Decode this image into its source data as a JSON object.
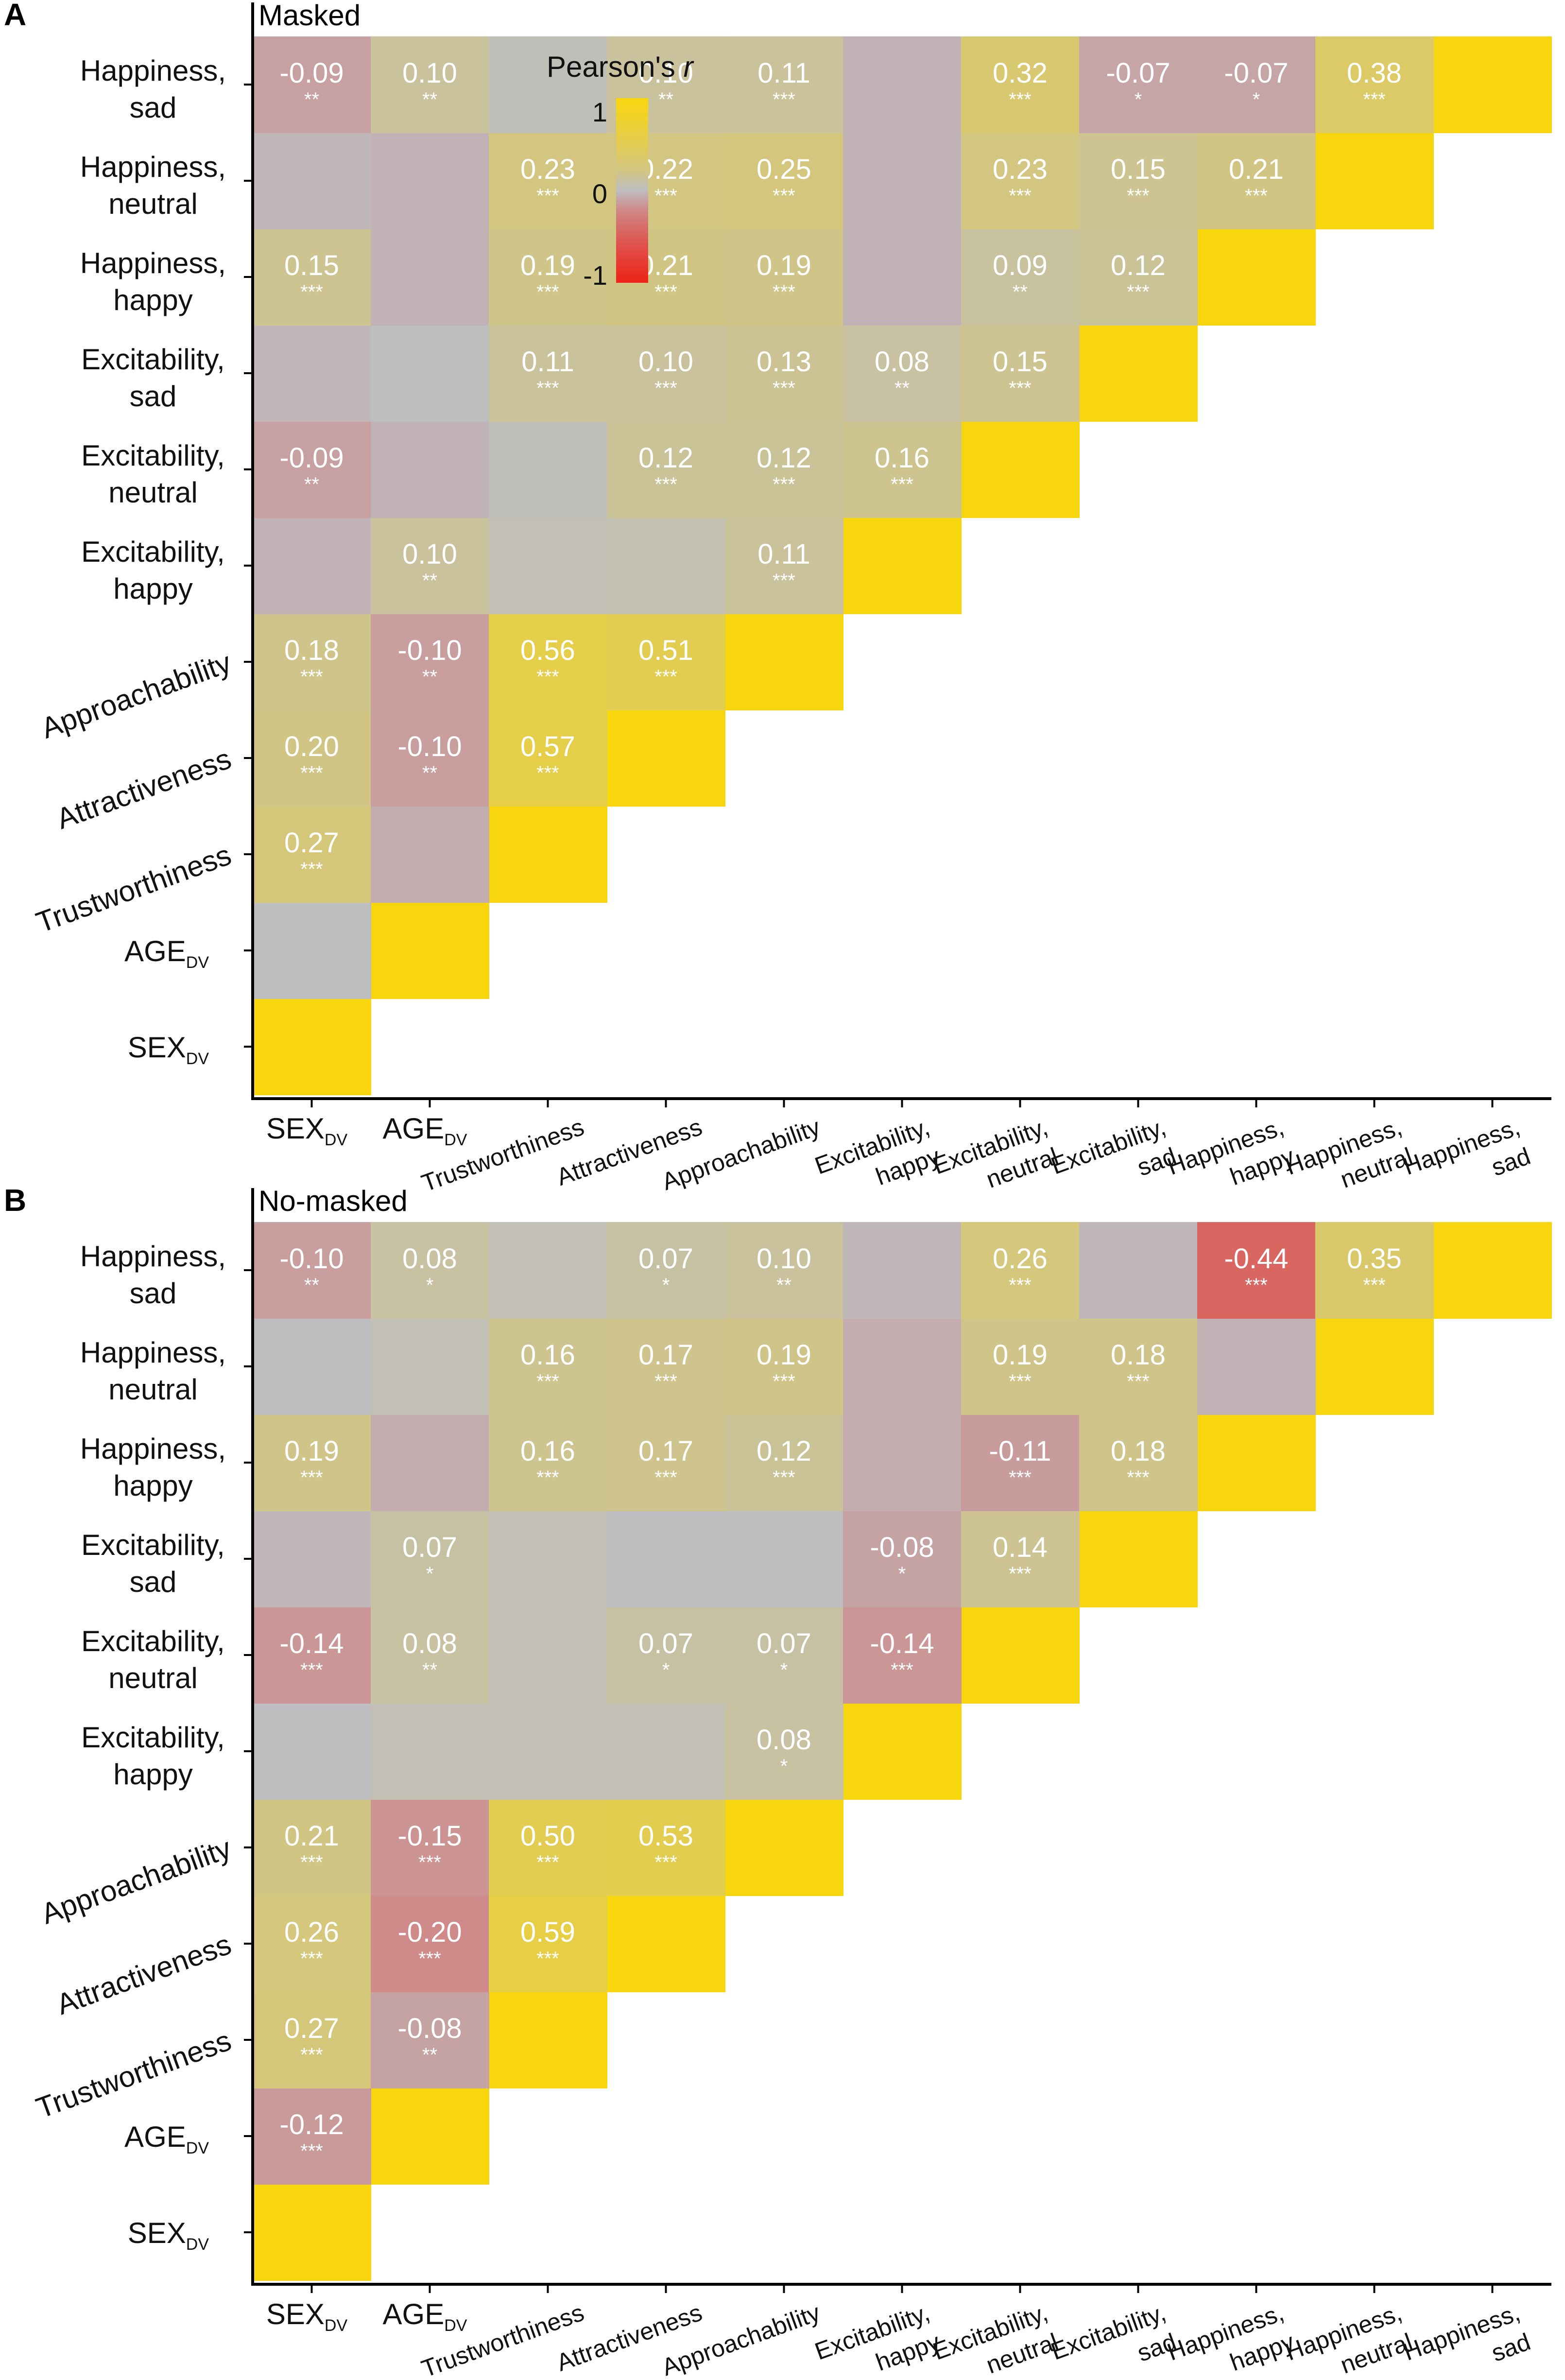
{
  "colors": {
    "pos_max": "#F8D60E",
    "zero": "#BEBDC0",
    "neg_max": "#EE2318",
    "axis": "#000000"
  },
  "chart_data": [
    {
      "type": "heatmap",
      "panel_letter": "A",
      "title": "Masked",
      "legend": {
        "title": "Pearson's",
        "title_var": "r",
        "ticks": [
          "1",
          "0",
          "-1"
        ],
        "range": [
          -1,
          1
        ]
      },
      "variables": [
        {
          "name": "SEX",
          "sub": "DV"
        },
        {
          "name": "AGE",
          "sub": "DV"
        },
        {
          "name": "Trustworthiness",
          "sub": ""
        },
        {
          "name": "Attractiveness",
          "sub": ""
        },
        {
          "name": "Approachability",
          "sub": ""
        },
        {
          "name": "Excitability, happy",
          "sub": ""
        },
        {
          "name": "Excitability, neutral",
          "sub": ""
        },
        {
          "name": "Excitability, sad",
          "sub": ""
        },
        {
          "name": "Happiness, happy",
          "sub": ""
        },
        {
          "name": "Happiness, neutral",
          "sub": ""
        },
        {
          "name": "Happiness, sad",
          "sub": ""
        }
      ],
      "cells": [
        {
          "row": 1,
          "col": 0,
          "r": 0.0,
          "label": "",
          "stars": ""
        },
        {
          "row": 2,
          "col": 0,
          "r": 0.27,
          "label": "0.27",
          "stars": "***"
        },
        {
          "row": 2,
          "col": 1,
          "r": -0.04,
          "label": "",
          "stars": ""
        },
        {
          "row": 3,
          "col": 0,
          "r": 0.2,
          "label": "0.20",
          "stars": "***"
        },
        {
          "row": 3,
          "col": 1,
          "r": -0.1,
          "label": "-0.10",
          "stars": "**"
        },
        {
          "row": 3,
          "col": 2,
          "r": 0.57,
          "label": "0.57",
          "stars": "***"
        },
        {
          "row": 4,
          "col": 0,
          "r": 0.18,
          "label": "0.18",
          "stars": "***"
        },
        {
          "row": 4,
          "col": 1,
          "r": -0.1,
          "label": "-0.10",
          "stars": "**"
        },
        {
          "row": 4,
          "col": 2,
          "r": 0.56,
          "label": "0.56",
          "stars": "***"
        },
        {
          "row": 4,
          "col": 3,
          "r": 0.51,
          "label": "0.51",
          "stars": "***"
        },
        {
          "row": 5,
          "col": 0,
          "r": -0.02,
          "label": "",
          "stars": ""
        },
        {
          "row": 5,
          "col": 1,
          "r": 0.1,
          "label": "0.10",
          "stars": "**"
        },
        {
          "row": 5,
          "col": 2,
          "r": 0.02,
          "label": "",
          "stars": ""
        },
        {
          "row": 5,
          "col": 3,
          "r": 0.03,
          "label": "",
          "stars": ""
        },
        {
          "row": 5,
          "col": 4,
          "r": 0.11,
          "label": "0.11",
          "stars": "***"
        },
        {
          "row": 6,
          "col": 0,
          "r": -0.09,
          "label": "-0.09",
          "stars": "**"
        },
        {
          "row": 6,
          "col": 1,
          "r": -0.02,
          "label": "",
          "stars": ""
        },
        {
          "row": 6,
          "col": 2,
          "r": 0.01,
          "label": "",
          "stars": ""
        },
        {
          "row": 6,
          "col": 3,
          "r": 0.12,
          "label": "0.12",
          "stars": "***"
        },
        {
          "row": 6,
          "col": 4,
          "r": 0.12,
          "label": "0.12",
          "stars": "***"
        },
        {
          "row": 6,
          "col": 5,
          "r": 0.16,
          "label": "0.16",
          "stars": "***"
        },
        {
          "row": 7,
          "col": 0,
          "r": -0.01,
          "label": "",
          "stars": ""
        },
        {
          "row": 7,
          "col": 1,
          "r": 0.0,
          "label": "",
          "stars": ""
        },
        {
          "row": 7,
          "col": 2,
          "r": 0.11,
          "label": "0.11",
          "stars": "***"
        },
        {
          "row": 7,
          "col": 3,
          "r": 0.1,
          "label": "0.10",
          "stars": "***"
        },
        {
          "row": 7,
          "col": 4,
          "r": 0.13,
          "label": "0.13",
          "stars": "***"
        },
        {
          "row": 7,
          "col": 5,
          "r": 0.08,
          "label": "0.08",
          "stars": "**"
        },
        {
          "row": 7,
          "col": 6,
          "r": 0.15,
          "label": "0.15",
          "stars": "***"
        },
        {
          "row": 8,
          "col": 0,
          "r": 0.15,
          "label": "0.15",
          "stars": "***"
        },
        {
          "row": 8,
          "col": 1,
          "r": -0.02,
          "label": "",
          "stars": ""
        },
        {
          "row": 8,
          "col": 2,
          "r": 0.19,
          "label": "0.19",
          "stars": "***"
        },
        {
          "row": 8,
          "col": 3,
          "r": 0.21,
          "label": "0.21",
          "stars": "***"
        },
        {
          "row": 8,
          "col": 4,
          "r": 0.19,
          "label": "0.19",
          "stars": "***"
        },
        {
          "row": 8,
          "col": 5,
          "r": -0.02,
          "label": "",
          "stars": ""
        },
        {
          "row": 8,
          "col": 6,
          "r": 0.09,
          "label": "0.09",
          "stars": "**"
        },
        {
          "row": 8,
          "col": 7,
          "r": 0.12,
          "label": "0.12",
          "stars": "***"
        },
        {
          "row": 9,
          "col": 0,
          "r": -0.01,
          "label": "",
          "stars": ""
        },
        {
          "row": 9,
          "col": 1,
          "r": -0.02,
          "label": "",
          "stars": ""
        },
        {
          "row": 9,
          "col": 2,
          "r": 0.23,
          "label": "0.23",
          "stars": "***"
        },
        {
          "row": 9,
          "col": 3,
          "r": 0.22,
          "label": "0.22",
          "stars": "***"
        },
        {
          "row": 9,
          "col": 4,
          "r": 0.25,
          "label": "0.25",
          "stars": "***"
        },
        {
          "row": 9,
          "col": 5,
          "r": -0.02,
          "label": "",
          "stars": ""
        },
        {
          "row": 9,
          "col": 6,
          "r": 0.23,
          "label": "0.23",
          "stars": "***"
        },
        {
          "row": 9,
          "col": 7,
          "r": 0.15,
          "label": "0.15",
          "stars": "***"
        },
        {
          "row": 9,
          "col": 8,
          "r": 0.21,
          "label": "0.21",
          "stars": "***"
        },
        {
          "row": 10,
          "col": 0,
          "r": -0.09,
          "label": "-0.09",
          "stars": "**"
        },
        {
          "row": 10,
          "col": 1,
          "r": 0.1,
          "label": "0.10",
          "stars": "**"
        },
        {
          "row": 10,
          "col": 2,
          "r": 0.01,
          "label": "",
          "stars": ""
        },
        {
          "row": 10,
          "col": 3,
          "r": 0.1,
          "label": "0.10",
          "stars": "**"
        },
        {
          "row": 10,
          "col": 4,
          "r": 0.11,
          "label": "0.11",
          "stars": "***"
        },
        {
          "row": 10,
          "col": 5,
          "r": -0.02,
          "label": "",
          "stars": ""
        },
        {
          "row": 10,
          "col": 6,
          "r": 0.32,
          "label": "0.32",
          "stars": "***"
        },
        {
          "row": 10,
          "col": 7,
          "r": -0.07,
          "label": "-0.07",
          "stars": "*"
        },
        {
          "row": 10,
          "col": 8,
          "r": -0.07,
          "label": "-0.07",
          "stars": "*"
        },
        {
          "row": 10,
          "col": 9,
          "r": 0.38,
          "label": "0.38",
          "stars": "***"
        }
      ]
    },
    {
      "type": "heatmap",
      "panel_letter": "B",
      "title": "No-masked",
      "variables": [
        {
          "name": "SEX",
          "sub": "DV"
        },
        {
          "name": "AGE",
          "sub": "DV"
        },
        {
          "name": "Trustworthiness",
          "sub": ""
        },
        {
          "name": "Attractiveness",
          "sub": ""
        },
        {
          "name": "Approachability",
          "sub": ""
        },
        {
          "name": "Excitability, happy",
          "sub": ""
        },
        {
          "name": "Excitability, neutral",
          "sub": ""
        },
        {
          "name": "Excitability, sad",
          "sub": ""
        },
        {
          "name": "Happiness, happy",
          "sub": ""
        },
        {
          "name": "Happiness, neutral",
          "sub": ""
        },
        {
          "name": "Happiness, sad",
          "sub": ""
        }
      ],
      "cells": [
        {
          "row": 1,
          "col": 0,
          "r": -0.12,
          "label": "-0.12",
          "stars": "***"
        },
        {
          "row": 2,
          "col": 0,
          "r": 0.27,
          "label": "0.27",
          "stars": "***"
        },
        {
          "row": 2,
          "col": 1,
          "r": -0.08,
          "label": "-0.08",
          "stars": "**"
        },
        {
          "row": 3,
          "col": 0,
          "r": 0.26,
          "label": "0.26",
          "stars": "***"
        },
        {
          "row": 3,
          "col": 1,
          "r": -0.2,
          "label": "-0.20",
          "stars": "***"
        },
        {
          "row": 3,
          "col": 2,
          "r": 0.59,
          "label": "0.59",
          "stars": "***"
        },
        {
          "row": 4,
          "col": 0,
          "r": 0.21,
          "label": "0.21",
          "stars": "***"
        },
        {
          "row": 4,
          "col": 1,
          "r": -0.15,
          "label": "-0.15",
          "stars": "***"
        },
        {
          "row": 4,
          "col": 2,
          "r": 0.5,
          "label": "0.50",
          "stars": "***"
        },
        {
          "row": 4,
          "col": 3,
          "r": 0.53,
          "label": "0.53",
          "stars": "***"
        },
        {
          "row": 5,
          "col": 0,
          "r": 0.0,
          "label": "",
          "stars": ""
        },
        {
          "row": 5,
          "col": 1,
          "r": 0.02,
          "label": "",
          "stars": ""
        },
        {
          "row": 5,
          "col": 2,
          "r": 0.02,
          "label": "",
          "stars": ""
        },
        {
          "row": 5,
          "col": 3,
          "r": 0.02,
          "label": "",
          "stars": ""
        },
        {
          "row": 5,
          "col": 4,
          "r": 0.08,
          "label": "0.08",
          "stars": "*"
        },
        {
          "row": 6,
          "col": 0,
          "r": -0.14,
          "label": "-0.14",
          "stars": "***"
        },
        {
          "row": 6,
          "col": 1,
          "r": 0.08,
          "label": "0.08",
          "stars": "**"
        },
        {
          "row": 6,
          "col": 2,
          "r": 0.02,
          "label": "",
          "stars": ""
        },
        {
          "row": 6,
          "col": 3,
          "r": 0.07,
          "label": "0.07",
          "stars": "*"
        },
        {
          "row": 6,
          "col": 4,
          "r": 0.07,
          "label": "0.07",
          "stars": "*"
        },
        {
          "row": 6,
          "col": 5,
          "r": -0.14,
          "label": "-0.14",
          "stars": "***"
        },
        {
          "row": 7,
          "col": 0,
          "r": -0.01,
          "label": "",
          "stars": ""
        },
        {
          "row": 7,
          "col": 1,
          "r": 0.07,
          "label": "0.07",
          "stars": "*"
        },
        {
          "row": 7,
          "col": 2,
          "r": 0.02,
          "label": "",
          "stars": ""
        },
        {
          "row": 7,
          "col": 3,
          "r": 0.0,
          "label": "",
          "stars": ""
        },
        {
          "row": 7,
          "col": 4,
          "r": 0.0,
          "label": "",
          "stars": ""
        },
        {
          "row": 7,
          "col": 5,
          "r": -0.08,
          "label": "-0.08",
          "stars": "*"
        },
        {
          "row": 7,
          "col": 6,
          "r": 0.14,
          "label": "0.14",
          "stars": "***"
        },
        {
          "row": 8,
          "col": 0,
          "r": 0.19,
          "label": "0.19",
          "stars": "***"
        },
        {
          "row": 8,
          "col": 1,
          "r": -0.04,
          "label": "",
          "stars": ""
        },
        {
          "row": 8,
          "col": 2,
          "r": 0.16,
          "label": "0.16",
          "stars": "***"
        },
        {
          "row": 8,
          "col": 3,
          "r": 0.17,
          "label": "0.17",
          "stars": "***"
        },
        {
          "row": 8,
          "col": 4,
          "r": 0.12,
          "label": "0.12",
          "stars": "***"
        },
        {
          "row": 8,
          "col": 5,
          "r": -0.04,
          "label": "",
          "stars": ""
        },
        {
          "row": 8,
          "col": 6,
          "r": -0.11,
          "label": "-0.11",
          "stars": "***"
        },
        {
          "row": 8,
          "col": 7,
          "r": 0.18,
          "label": "0.18",
          "stars": "***"
        },
        {
          "row": 9,
          "col": 0,
          "r": 0.0,
          "label": "",
          "stars": ""
        },
        {
          "row": 9,
          "col": 1,
          "r": 0.02,
          "label": "",
          "stars": ""
        },
        {
          "row": 9,
          "col": 2,
          "r": 0.16,
          "label": "0.16",
          "stars": "***"
        },
        {
          "row": 9,
          "col": 3,
          "r": 0.17,
          "label": "0.17",
          "stars": "***"
        },
        {
          "row": 9,
          "col": 4,
          "r": 0.19,
          "label": "0.19",
          "stars": "***"
        },
        {
          "row": 9,
          "col": 5,
          "r": -0.04,
          "label": "",
          "stars": ""
        },
        {
          "row": 9,
          "col": 6,
          "r": 0.19,
          "label": "0.19",
          "stars": "***"
        },
        {
          "row": 9,
          "col": 7,
          "r": 0.18,
          "label": "0.18",
          "stars": "***"
        },
        {
          "row": 9,
          "col": 8,
          "r": -0.02,
          "label": "",
          "stars": ""
        },
        {
          "row": 10,
          "col": 0,
          "r": -0.1,
          "label": "-0.10",
          "stars": "**"
        },
        {
          "row": 10,
          "col": 1,
          "r": 0.08,
          "label": "0.08",
          "stars": "*"
        },
        {
          "row": 10,
          "col": 2,
          "r": 0.02,
          "label": "",
          "stars": ""
        },
        {
          "row": 10,
          "col": 3,
          "r": 0.07,
          "label": "0.07",
          "stars": "*"
        },
        {
          "row": 10,
          "col": 4,
          "r": 0.1,
          "label": "0.10",
          "stars": "**"
        },
        {
          "row": 10,
          "col": 5,
          "r": -0.01,
          "label": "",
          "stars": ""
        },
        {
          "row": 10,
          "col": 6,
          "r": 0.26,
          "label": "0.26",
          "stars": "***"
        },
        {
          "row": 10,
          "col": 7,
          "r": -0.01,
          "label": "",
          "stars": ""
        },
        {
          "row": 10,
          "col": 8,
          "r": -0.44,
          "label": "-0.44",
          "stars": "***"
        },
        {
          "row": 10,
          "col": 9,
          "r": 0.35,
          "label": "0.35",
          "stars": "***"
        }
      ]
    }
  ]
}
